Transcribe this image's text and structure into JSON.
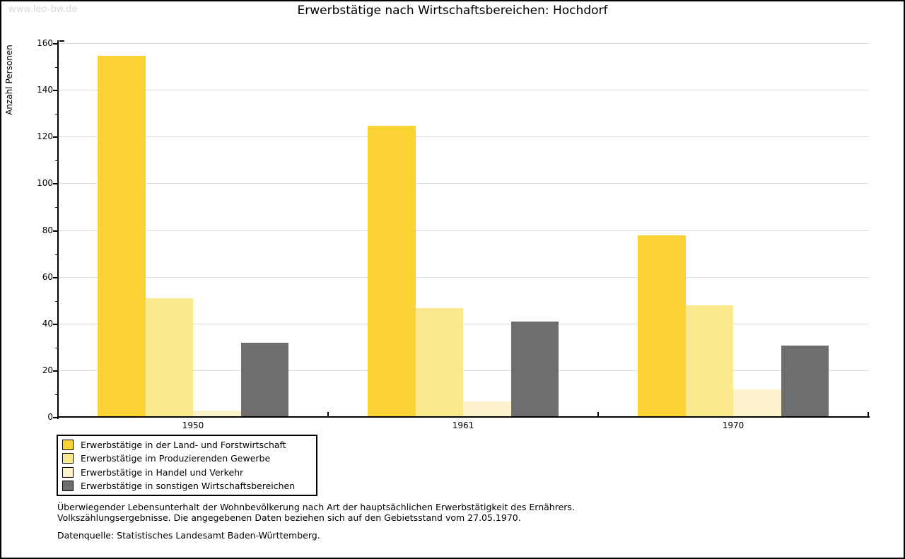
{
  "watermark": "www.leo-bw.de",
  "title": "Erwerbstätige nach Wirtschaftsbereichen: Hochdorf",
  "chart_data": {
    "type": "bar",
    "title": "Erwerbstätige nach Wirtschaftsbereichen: Hochdorf",
    "ylabel": "Anzahl Personen",
    "xlabel": "",
    "ylim": [
      0,
      160
    ],
    "ytick_major_step": 20,
    "ytick_minor_step": 10,
    "grid": "horizontal-major-only",
    "legend_position": "bottom-left",
    "categories": [
      "1950",
      "1961",
      "1970"
    ],
    "series": [
      {
        "name": "Erwerbstätige in der Land- und Forstwirtschaft",
        "color": "#FBD335",
        "values": [
          155,
          125,
          78
        ]
      },
      {
        "name": "Erwerbstätige im Produzierenden Gewerbe",
        "color": "#FBE98E",
        "values": [
          51,
          47,
          48
        ]
      },
      {
        "name": "Erwerbstätige in Handel und Verkehr",
        "color": "#FCF3CC",
        "values": [
          3,
          7,
          12
        ]
      },
      {
        "name": "Erwerbstätige in sonstigen Wirtschaftsbereichen",
        "color": "#6E6E6E",
        "values": [
          32,
          41,
          31
        ]
      }
    ]
  },
  "footnote": {
    "line1": "Überwiegender Lebensunterhalt der Wohnbevölkerung nach Art der hauptsächlichen Erwerbstätigkeit des Ernährers.",
    "line2": "Volkszählungsergebnisse. Die angegebenen Daten beziehen sich auf den Gebietsstand vom 27.05.1970.",
    "source": "Datenquelle: Statistisches Landesamt Baden-Württemberg."
  },
  "colors": {
    "gridline": "#dddddd",
    "axis": "#000000",
    "watermark": "#d8d8d8",
    "background": "#ffffff"
  }
}
